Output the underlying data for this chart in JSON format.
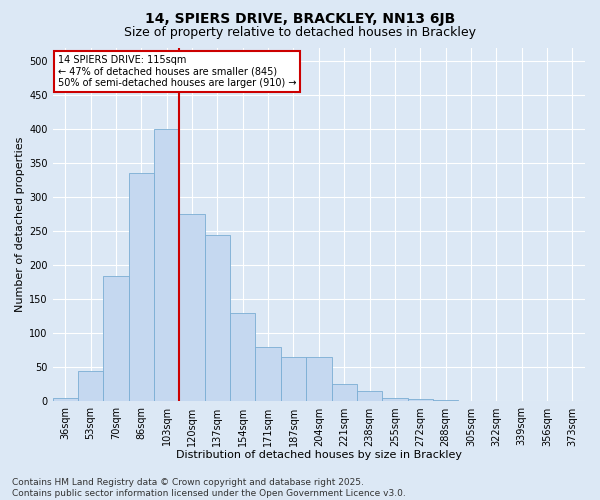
{
  "title": "14, SPIERS DRIVE, BRACKLEY, NN13 6JB",
  "subtitle": "Size of property relative to detached houses in Brackley",
  "xlabel": "Distribution of detached houses by size in Brackley",
  "ylabel": "Number of detached properties",
  "bar_color": "#c5d8f0",
  "bar_edge_color": "#7aadd4",
  "axes_bg_color": "#dce8f5",
  "fig_bg_color": "#dce8f5",
  "grid_color": "#ffffff",
  "vline_color": "#cc0000",
  "vline_x": 4.5,
  "annotation_text": "14 SPIERS DRIVE: 115sqm\n← 47% of detached houses are smaller (845)\n50% of semi-detached houses are larger (910) →",
  "annotation_box_facecolor": "#ffffff",
  "annotation_box_edgecolor": "#cc0000",
  "categories": [
    "36sqm",
    "53sqm",
    "70sqm",
    "86sqm",
    "103sqm",
    "120sqm",
    "137sqm",
    "154sqm",
    "171sqm",
    "187sqm",
    "204sqm",
    "221sqm",
    "238sqm",
    "255sqm",
    "272sqm",
    "288sqm",
    "305sqm",
    "322sqm",
    "339sqm",
    "356sqm",
    "373sqm"
  ],
  "values": [
    5,
    45,
    185,
    335,
    400,
    275,
    245,
    130,
    80,
    65,
    65,
    25,
    15,
    5,
    4,
    2,
    1,
    0,
    0,
    0,
    1
  ],
  "ylim": [
    0,
    520
  ],
  "yticks": [
    0,
    50,
    100,
    150,
    200,
    250,
    300,
    350,
    400,
    450,
    500
  ],
  "footer_text": "Contains HM Land Registry data © Crown copyright and database right 2025.\nContains public sector information licensed under the Open Government Licence v3.0.",
  "title_fontsize": 10,
  "subtitle_fontsize": 9,
  "label_fontsize": 8,
  "tick_fontsize": 7,
  "annotation_fontsize": 7,
  "footer_fontsize": 6.5
}
